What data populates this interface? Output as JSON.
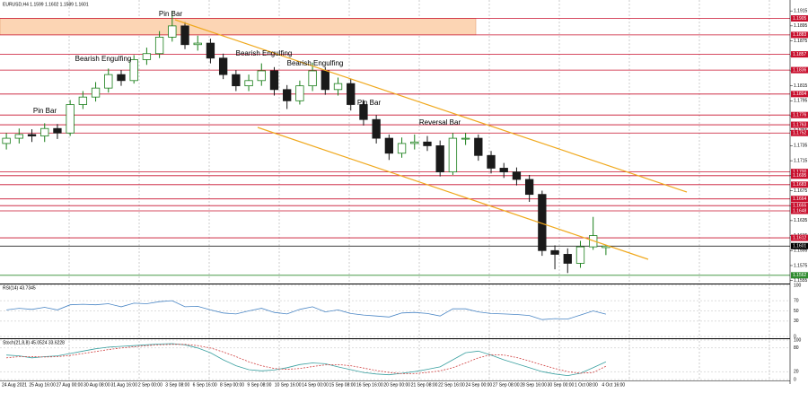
{
  "chart_data": {
    "type": "candlestick",
    "symbol_info": "EURUSD,H4  1.1599 1.1602 1.1589 1.1601",
    "x_labels": [
      "24 Aug 2021",
      "25 Aug 16:00",
      "27 Aug 00:00",
      "30 Aug 08:00",
      "31 Aug 16:00",
      "2 Sep 00:00",
      "3 Sep 08:00",
      "6 Sep 16:00",
      "8 Sep 00:00",
      "9 Sep 08:00",
      "10 Sep 16:00",
      "14 Sep 00:00",
      "15 Sep 08:00",
      "16 Sep 16:00",
      "20 Sep 00:00",
      "21 Sep 08:00",
      "22 Sep 16:00",
      "24 Sep 00:00",
      "27 Sep 08:00",
      "28 Sep 16:00",
      "30 Sep 00:00",
      "1 Oct 08:00",
      "4 Oct 16:00"
    ],
    "open": [
      1.1738,
      1.1745,
      1.175,
      1.1748,
      1.1758,
      1.1752,
      1.179,
      1.18,
      1.1812,
      1.183,
      1.1822,
      1.185,
      1.1858,
      1.188,
      1.1895,
      1.187,
      1.1872,
      1.1852,
      1.183,
      1.1815,
      1.1822,
      1.1835,
      1.181,
      1.1795,
      1.1815,
      1.1835,
      1.181,
      1.1818,
      1.179,
      1.177,
      1.1745,
      1.1725,
      1.1738,
      1.174,
      1.1735,
      1.17,
      1.1745,
      1.1745,
      1.1722,
      1.1705,
      1.17,
      1.169,
      1.167,
      1.1595,
      1.159,
      1.1578,
      1.16,
      1.1599
    ],
    "high": [
      1.1752,
      1.1758,
      1.1757,
      1.1765,
      1.1764,
      1.1796,
      1.1808,
      1.182,
      1.1838,
      1.1836,
      1.1856,
      1.1866,
      1.1888,
      1.1915,
      1.19,
      1.1882,
      1.1878,
      1.1858,
      1.1836,
      1.183,
      1.1845,
      1.184,
      1.1816,
      1.1822,
      1.1846,
      1.184,
      1.1826,
      1.1824,
      1.1796,
      1.1776,
      1.175,
      1.1746,
      1.175,
      1.1748,
      1.1742,
      1.1752,
      1.1752,
      1.175,
      1.1728,
      1.1712,
      1.1706,
      1.1696,
      1.1675,
      1.1602,
      1.1598,
      1.1608,
      1.164,
      1.1602
    ],
    "low": [
      1.173,
      1.1738,
      1.174,
      1.174,
      1.1744,
      1.1748,
      1.1784,
      1.1794,
      1.1806,
      1.1815,
      1.1818,
      1.1843,
      1.1852,
      1.1874,
      1.1864,
      1.1862,
      1.1845,
      1.1824,
      1.1808,
      1.1808,
      1.1815,
      1.1802,
      1.1784,
      1.179,
      1.1808,
      1.1803,
      1.1802,
      1.1782,
      1.1762,
      1.1738,
      1.1716,
      1.1719,
      1.173,
      1.1728,
      1.1694,
      1.1696,
      1.1736,
      1.1715,
      1.1698,
      1.1692,
      1.1682,
      1.166,
      1.1588,
      1.157,
      1.1565,
      1.1572,
      1.1596,
      1.1589
    ],
    "close": [
      1.1745,
      1.175,
      1.1748,
      1.1758,
      1.1752,
      1.179,
      1.18,
      1.1812,
      1.183,
      1.1822,
      1.185,
      1.1858,
      1.188,
      1.1895,
      1.187,
      1.1872,
      1.1852,
      1.183,
      1.1815,
      1.1822,
      1.1835,
      1.181,
      1.1795,
      1.1815,
      1.1835,
      1.181,
      1.1818,
      1.179,
      1.177,
      1.1745,
      1.1725,
      1.1738,
      1.174,
      1.1735,
      1.17,
      1.1745,
      1.1745,
      1.1722,
      1.1705,
      1.17,
      1.169,
      1.167,
      1.1595,
      1.159,
      1.1578,
      1.16,
      1.1615,
      1.1601
    ],
    "up_color": "#1a7f1a",
    "down_color": "#1a1a1a",
    "ylim": [
      1.1551,
      1.1926
    ],
    "yticks": [
      1.1555,
      1.1575,
      1.1595,
      1.1615,
      1.1635,
      1.1655,
      1.1675,
      1.1695,
      1.1715,
      1.1735,
      1.1755,
      1.1775,
      1.1795,
      1.1815,
      1.1835,
      1.1855,
      1.1875,
      1.1895,
      1.1915
    ],
    "zone": {
      "from": 1.1883,
      "to": 1.1905,
      "color": "#fcd5b4"
    },
    "levels": [
      {
        "value": 1.1905,
        "color": "#c8102e"
      },
      {
        "value": 1.1883,
        "color": "#c8102e"
      },
      {
        "value": 1.1857,
        "color": "#c8102e"
      },
      {
        "value": 1.1836,
        "color": "#c8102e"
      },
      {
        "value": 1.1804,
        "color": "#c8102e"
      },
      {
        "value": 1.1776,
        "color": "#c8102e"
      },
      {
        "value": 1.1763,
        "color": "#c8102e"
      },
      {
        "value": 1.1752,
        "color": "#c8102e"
      },
      {
        "value": 1.17,
        "label": "1.1700",
        "color": "#c8102e"
      },
      {
        "value": 1.1695,
        "color": "#c8102e"
      },
      {
        "value": 1.1683,
        "color": "#c8102e"
      },
      {
        "value": 1.1664,
        "color": "#c8102e"
      },
      {
        "value": 1.1655,
        "color": "#c8102e"
      },
      {
        "value": 1.1648,
        "color": "#c8102e"
      },
      {
        "value": 1.1612,
        "color": "#c8102e"
      },
      {
        "value": 1.1601,
        "color": "#000000"
      },
      {
        "value": 1.1562,
        "color": "#2e8b2e"
      }
    ],
    "annotations": [
      "Pin Bar",
      "Bearish Engulfing",
      "Pin Bar",
      "Bearish Engulfing",
      "Bearish Engulfing",
      "Pin Bar",
      "Reversal Bar"
    ],
    "channel_color": "#f0a91e",
    "indicators": [
      {
        "type": "line",
        "label": "RSI(14) 43.7345",
        "ylim": [
          0,
          100
        ],
        "yticks": [
          0,
          30,
          50,
          70,
          100
        ],
        "series": [
          {
            "color": "#4a86c5",
            "values": [
              52,
              55,
              53,
              57,
              52,
              62,
              63,
              62,
              64,
              58,
              65,
              64,
              68,
              70,
              58,
              59,
              52,
              46,
              44,
              50,
              55,
              47,
              44,
              53,
              58,
              48,
              52,
              45,
              42,
              40,
              38,
              46,
              47,
              45,
              40,
              54,
              54,
              48,
              45,
              44,
              43,
              41,
              33,
              35,
              34,
              42,
              50,
              43.7345
            ]
          }
        ]
      },
      {
        "type": "line",
        "label": "Stoch(21,8,8) 45.0524 33.6228",
        "ylim": [
          0,
          100
        ],
        "yticks": [
          0,
          20,
          80,
          100
        ],
        "series": [
          {
            "color": "#3aa0a0",
            "values": [
              62,
              60,
              55,
              58,
              60,
              66,
              72,
              78,
              82,
              84,
              86,
              88,
              90,
              91,
              88,
              80,
              68,
              50,
              35,
              25,
              22,
              24,
              30,
              38,
              42,
              40,
              32,
              25,
              18,
              14,
              12,
              16,
              20,
              26,
              32,
              50,
              68,
              72,
              62,
              50,
              40,
              30,
              20,
              14,
              10,
              16,
              30,
              45.0524
            ]
          },
          {
            "color": "#d04040",
            "values": [
              55,
              58,
              58,
              57,
              58,
              61,
              66,
              71,
              76,
              80,
              83,
              86,
              88,
              89,
              89,
              86,
              80,
              70,
              58,
              45,
              35,
              28,
              26,
              28,
              33,
              37,
              38,
              35,
              29,
              23,
              18,
              15,
              15,
              18,
              22,
              30,
              42,
              55,
              63,
              62,
              56,
              47,
              37,
              28,
              20,
              16,
              18,
              33.6228
            ]
          }
        ]
      }
    ]
  }
}
